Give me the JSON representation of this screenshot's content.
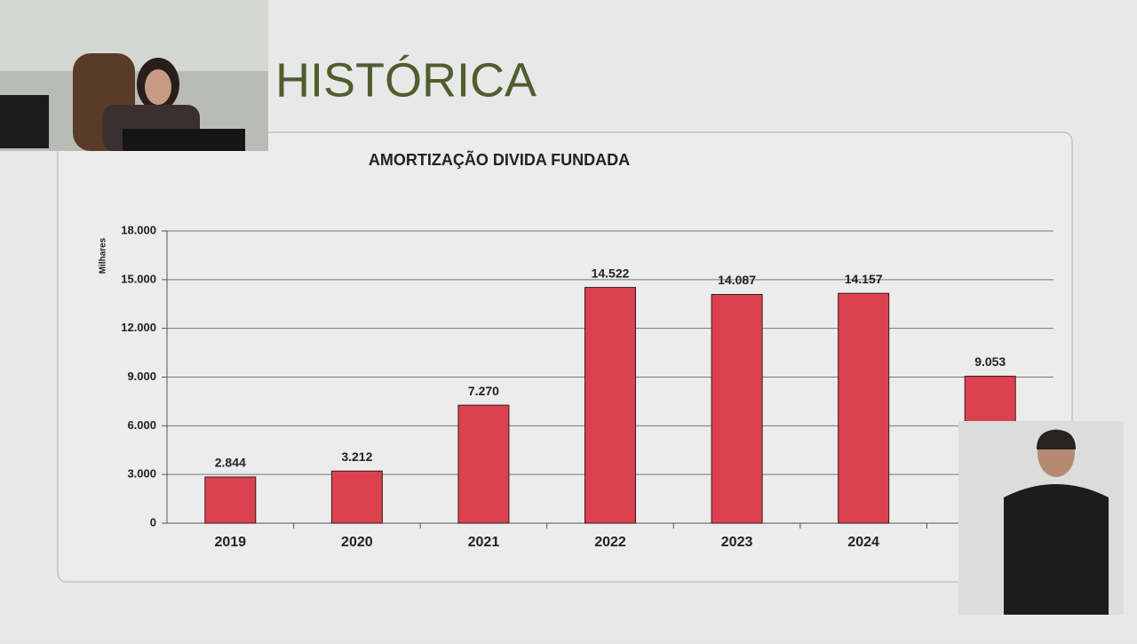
{
  "slide_title": "HISTÓRICA",
  "chart_data": {
    "type": "bar",
    "title": "AMORTIZAÇÃO DIVIDA FUNDADA",
    "y_label": "Milhares",
    "categories": [
      "2019",
      "2020",
      "2021",
      "2022",
      "2023",
      "2024",
      null
    ],
    "values": [
      2844,
      3212,
      7270,
      14522,
      14087,
      14157,
      9053
    ],
    "value_labels": [
      "2.844",
      "3.212",
      "7.270",
      "14.522",
      "14.087",
      "14.157",
      "9.053"
    ],
    "color": "#dc4150",
    "ylim": [
      0,
      18000
    ],
    "yticks": [
      0,
      {
        "value": 3000,
        "label": "3.000"
      },
      {
        "value": 6000,
        "label": "6.000"
      },
      {
        "value": 9000,
        "label": "9.000"
      },
      {
        "value": 12000,
        "label": "12.000"
      },
      {
        "value": 15000,
        "label": "15.000"
      },
      {
        "value": 18000,
        "label": "18.000"
      }
    ],
    "grid": true
  }
}
